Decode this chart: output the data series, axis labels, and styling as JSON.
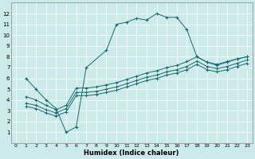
{
  "xlabel": "Humidex (Indice chaleur)",
  "bg_color": "#cceaea",
  "grid_color": "#ffffff",
  "line_color": "#1a6b6b",
  "xlim": [
    -0.5,
    23.5
  ],
  "ylim": [
    0,
    13
  ],
  "xticks": [
    0,
    1,
    2,
    3,
    4,
    5,
    6,
    7,
    8,
    9,
    10,
    11,
    12,
    13,
    14,
    15,
    16,
    17,
    18,
    19,
    20,
    21,
    22,
    23
  ],
  "yticks": [
    1,
    2,
    3,
    4,
    5,
    6,
    7,
    8,
    9,
    10,
    11,
    12
  ],
  "line1_x": [
    1,
    2,
    3,
    4,
    5,
    6,
    7,
    9,
    10,
    11,
    12,
    13,
    14,
    15,
    16,
    17,
    18,
    19,
    20,
    21,
    22,
    23
  ],
  "line1_y": [
    6.0,
    5.0,
    4.0,
    3.2,
    1.0,
    1.5,
    7.0,
    8.6,
    11.0,
    11.2,
    11.55,
    11.4,
    12.0,
    11.65,
    11.65,
    10.5,
    8.0,
    7.5,
    7.2,
    7.5,
    7.8,
    8.0
  ],
  "line2_x": [
    1,
    2,
    3,
    4,
    5,
    6,
    7,
    8,
    9,
    10,
    11,
    12,
    13,
    14,
    15,
    16,
    17,
    18,
    19,
    20,
    21,
    22,
    23
  ],
  "line2_y": [
    4.3,
    4.0,
    3.5,
    3.1,
    3.5,
    5.1,
    5.1,
    5.2,
    5.4,
    5.6,
    5.9,
    6.2,
    6.5,
    6.7,
    7.0,
    7.2,
    7.55,
    8.0,
    7.5,
    7.3,
    7.55,
    7.8,
    8.0
  ],
  "line3_x": [
    1,
    2,
    3,
    4,
    5,
    6,
    7,
    8,
    9,
    10,
    11,
    12,
    13,
    14,
    15,
    16,
    17,
    18,
    19,
    20,
    21,
    22,
    23
  ],
  "line3_y": [
    3.7,
    3.5,
    3.1,
    2.8,
    3.2,
    4.7,
    4.7,
    4.8,
    5.0,
    5.2,
    5.5,
    5.8,
    6.1,
    6.3,
    6.6,
    6.8,
    7.1,
    7.6,
    7.1,
    6.9,
    7.1,
    7.4,
    7.7
  ],
  "line4_x": [
    1,
    2,
    3,
    4,
    5,
    6,
    7,
    8,
    9,
    10,
    11,
    12,
    13,
    14,
    15,
    16,
    17,
    18,
    19,
    20,
    21,
    22,
    23
  ],
  "line4_y": [
    3.4,
    3.2,
    2.8,
    2.5,
    2.9,
    4.4,
    4.4,
    4.5,
    4.7,
    4.9,
    5.2,
    5.5,
    5.8,
    6.0,
    6.3,
    6.5,
    6.8,
    7.3,
    6.8,
    6.6,
    6.8,
    7.1,
    7.4
  ]
}
